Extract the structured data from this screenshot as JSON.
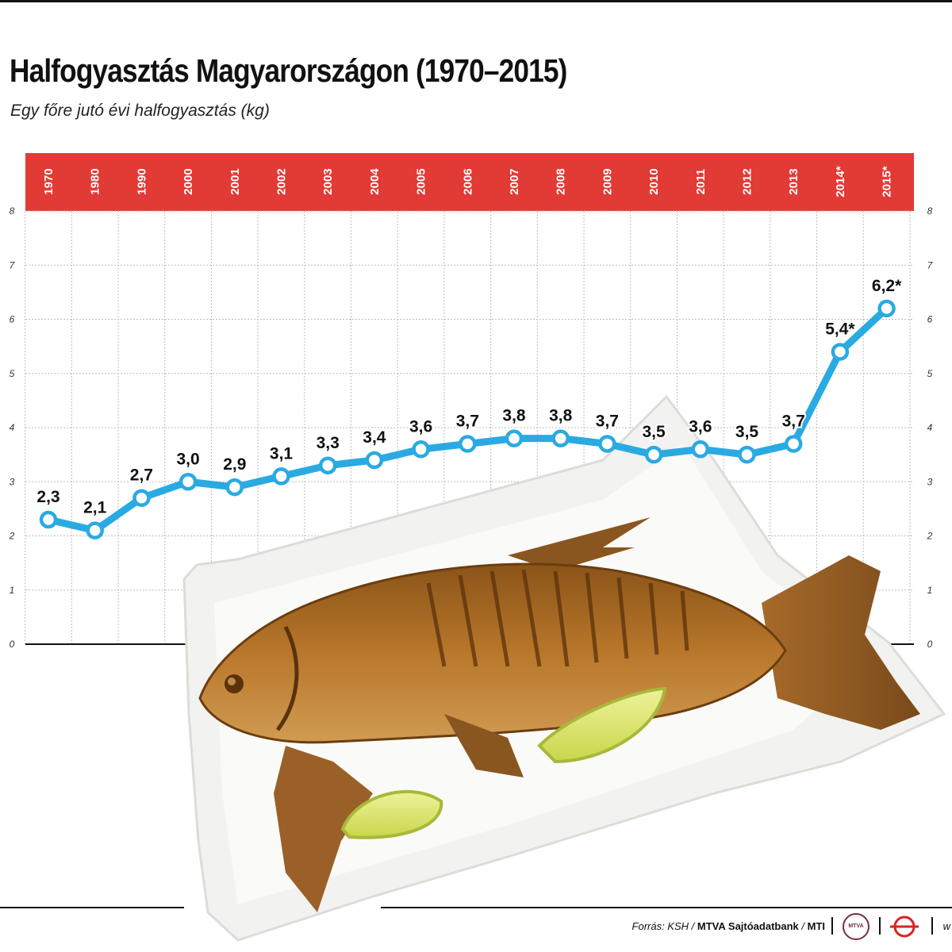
{
  "header": {
    "title": "Halfogyasztás Magyarországon (1970–2015)",
    "subtitle": "Egy főre jutó évi halfogyasztás (kg)"
  },
  "chart_data": {
    "type": "line",
    "title": "Halfogyasztás Magyarországon (1970–2015)",
    "subtitle": "Egy főre jutó évi halfogyasztás (kg)",
    "categories": [
      "1970",
      "1980",
      "1990",
      "2000",
      "2001",
      "2002",
      "2003",
      "2004",
      "2005",
      "2006",
      "2007",
      "2008",
      "2009",
      "2010",
      "2011",
      "2012",
      "2013",
      "2014*",
      "2015*"
    ],
    "values": [
      2.3,
      2.1,
      2.7,
      3.0,
      2.9,
      3.1,
      3.3,
      3.4,
      3.6,
      3.7,
      3.8,
      3.8,
      3.7,
      3.5,
      3.6,
      3.5,
      3.7,
      5.4,
      6.2
    ],
    "value_labels": [
      "2,3",
      "2,1",
      "2,7",
      "3,0",
      "2,9",
      "3,1",
      "3,3",
      "3,4",
      "3,6",
      "3,7",
      "3,8",
      "3,8",
      "3,7",
      "3,5",
      "3,6",
      "3,5",
      "3,7",
      "5,4*",
      "6,2*"
    ],
    "y_ticks": [
      "0",
      "1",
      "2",
      "3",
      "4",
      "5",
      "6",
      "7",
      "8"
    ],
    "ylim": [
      0,
      8
    ],
    "grid": true,
    "line_color": "#2aaae2",
    "header_band_color": "#e23a34"
  },
  "footer": {
    "source_prefix": "Forrás: KSH / ",
    "source_bold": "MTVA Sajtóadatbank",
    "source_sep": " / ",
    "source_agency": "MTI",
    "logo_text": "MTVA",
    "web_fragment": "w"
  },
  "illustration": {
    "name": "fried-fish-on-paper-plate-photo"
  }
}
